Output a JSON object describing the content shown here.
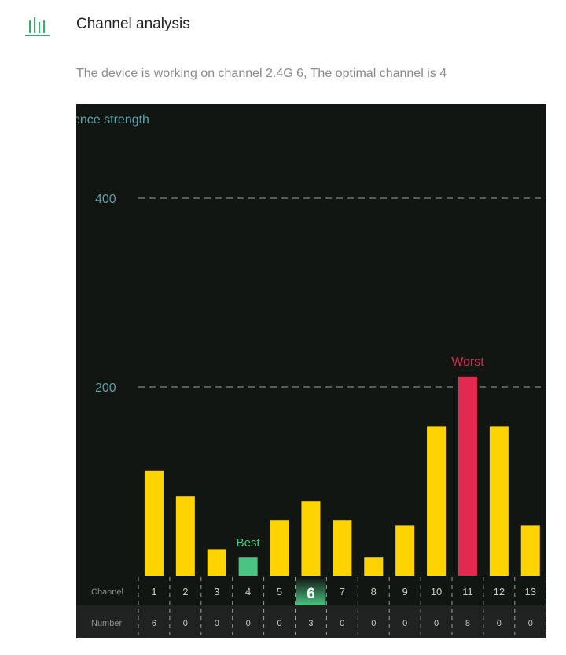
{
  "header": {
    "icon": "bar-chart-icon",
    "title": "Channel analysis",
    "status_text": "The device is working on channel 2.4G 6, The optimal channel is 4"
  },
  "colors": {
    "normal_bar": "#fdd400",
    "best": "#4bc483",
    "worst": "#e22a51",
    "axis_text": "#5e9ea7",
    "panel": "#121613"
  },
  "chart_data": {
    "type": "bar",
    "ylabel": "ence strength",
    "ylim": [
      0,
      460
    ],
    "yticks": [
      200,
      400
    ],
    "grid": "dashed horizontal",
    "row_labels": {
      "channel": "Channel",
      "number": "Number"
    },
    "categories": [
      "1",
      "2",
      "3",
      "4",
      "5",
      "6",
      "7",
      "8",
      "9",
      "10",
      "11",
      "12",
      "13"
    ],
    "values": [
      111,
      84,
      28,
      19,
      59,
      79,
      59,
      19,
      53,
      158,
      211,
      158,
      53
    ],
    "numbers": [
      "6",
      "0",
      "0",
      "0",
      "0",
      "3",
      "0",
      "0",
      "0",
      "0",
      "8",
      "0",
      "0"
    ],
    "current_channel": "6",
    "best": {
      "channel": "4",
      "label": "Best"
    },
    "worst": {
      "channel": "11",
      "label": "Worst"
    }
  }
}
